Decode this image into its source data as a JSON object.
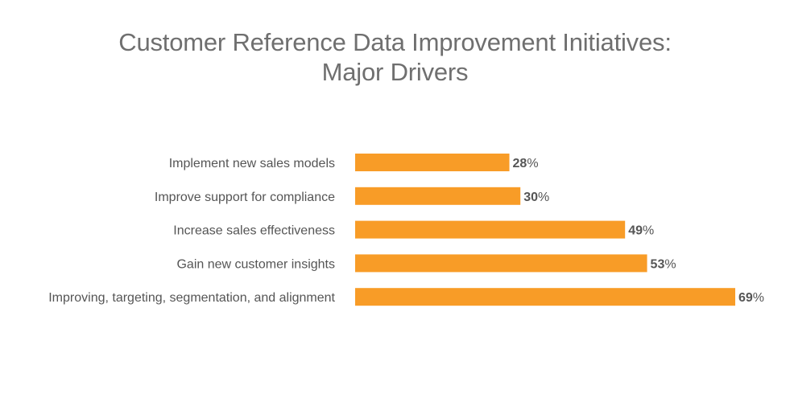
{
  "chart_data": {
    "type": "bar",
    "orientation": "horizontal",
    "title": "Customer Reference Data Improvement Initiatives: Major Drivers",
    "title_lines": [
      "Customer Reference Data Improvement Initiatives:",
      "Major Drivers"
    ],
    "categories": [
      "Implement new sales models",
      "Improve support for compliance",
      "Increase sales effectiveness",
      "Gain new customer insights",
      "Improving, targeting, segmentation, and alignment"
    ],
    "values": [
      28,
      30,
      49,
      53,
      69
    ],
    "value_suffix": "%",
    "xlabel": "",
    "ylabel": "",
    "xlim": [
      0,
      69
    ],
    "grid": false,
    "legend": "none",
    "bar_color": "#f89c27",
    "text_color": "#555555",
    "title_color": "#6f6f6f"
  }
}
